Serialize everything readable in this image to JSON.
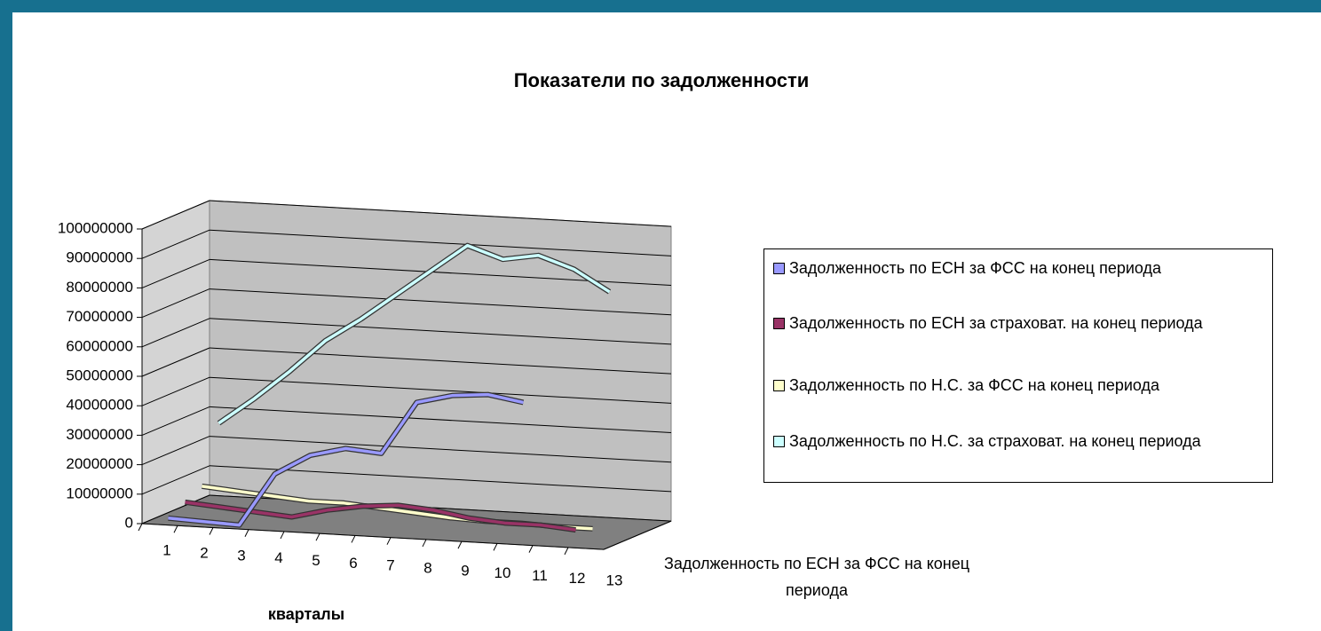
{
  "chart_data": {
    "type": "line3d",
    "title": "Показатели по задолженности",
    "x_label": "кварталы",
    "categories": [
      "1",
      "2",
      "3",
      "4",
      "5",
      "6",
      "7",
      "8",
      "9",
      "10",
      "11",
      "12",
      "13"
    ],
    "ylim": [
      0,
      100000000
    ],
    "yticks": [
      0,
      10000000,
      20000000,
      30000000,
      40000000,
      50000000,
      60000000,
      70000000,
      80000000,
      90000000,
      100000000
    ],
    "grid": true,
    "legend": "right",
    "series": [
      {
        "name": "Задолженность по ЕСН за ФСС на конец периода",
        "color": "#9999ff",
        "values": [
          1000000,
          500000,
          0,
          18000000,
          25000000,
          28000000,
          27000000,
          45000000,
          48000000,
          49000000,
          47000000,
          null,
          null
        ]
      },
      {
        "name": "Задолженность по ЕСН за страховат. на конец периода",
        "color": "#993366",
        "values": [
          4000000,
          3000000,
          2000000,
          1000000,
          4000000,
          6000000,
          7000000,
          6000000,
          4000000,
          3000000,
          3000000,
          2000000,
          null
        ]
      },
      {
        "name": "Задолженность по Н.С. за ФСС на конец периода",
        "color": "#ffffcc",
        "values": [
          7000000,
          6000000,
          5000000,
          4000000,
          4000000,
          3000000,
          2000000,
          1000000,
          500000,
          500000,
          0,
          0,
          null
        ]
      },
      {
        "name": "Задолженность по Н.С. за страховат. на конец периода",
        "color": "#ccffff",
        "values": [
          26000000,
          35000000,
          45000000,
          56000000,
          64000000,
          73000000,
          82000000,
          91000000,
          87000000,
          89000000,
          85000000,
          78000000,
          null
        ]
      }
    ]
  }
}
